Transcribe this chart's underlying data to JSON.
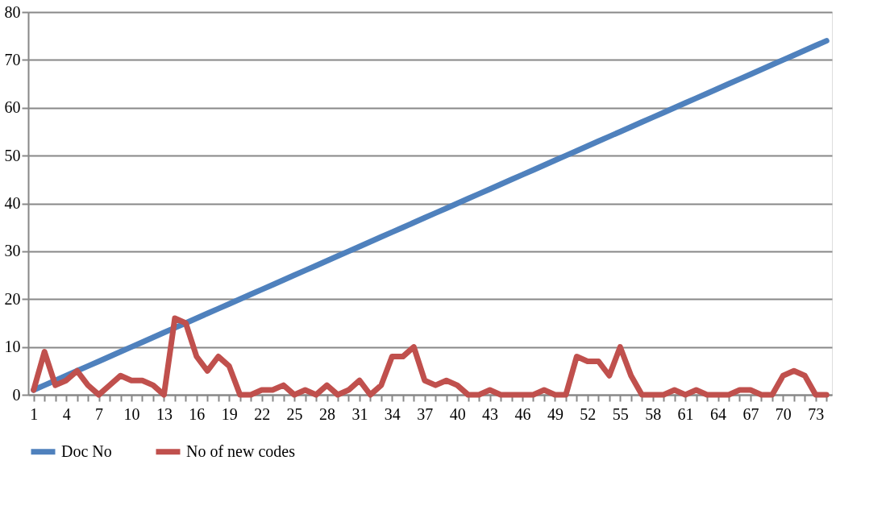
{
  "chart_data": {
    "type": "line",
    "categories": [
      "1",
      null,
      null,
      "4",
      null,
      null,
      "7",
      null,
      null,
      "10",
      null,
      null,
      "13",
      null,
      null,
      "16",
      null,
      null,
      "19",
      null,
      null,
      "22",
      null,
      null,
      "25",
      null,
      null,
      "28",
      null,
      null,
      "31",
      null,
      null,
      "34",
      null,
      null,
      "37",
      null,
      null,
      "40",
      null,
      null,
      "43",
      null,
      null,
      "46",
      null,
      null,
      "49",
      null,
      null,
      "52",
      null,
      null,
      "55",
      null,
      null,
      "58",
      null,
      null,
      "61",
      null,
      null,
      "64",
      null,
      null,
      "67",
      null,
      null,
      "70",
      null,
      null,
      "73",
      null
    ],
    "series": [
      {
        "name": "Doc No",
        "color": "#4f81bd",
        "values": [
          1,
          2,
          3,
          4,
          5,
          6,
          7,
          8,
          9,
          10,
          11,
          12,
          13,
          14,
          15,
          16,
          17,
          18,
          19,
          20,
          21,
          22,
          23,
          24,
          25,
          26,
          27,
          28,
          29,
          30,
          31,
          32,
          33,
          34,
          35,
          36,
          37,
          38,
          39,
          40,
          41,
          42,
          43,
          44,
          45,
          46,
          47,
          48,
          49,
          50,
          51,
          52,
          53,
          54,
          55,
          56,
          57,
          58,
          59,
          60,
          61,
          62,
          63,
          64,
          65,
          66,
          67,
          68,
          69,
          70,
          71,
          72,
          73,
          74
        ]
      },
      {
        "name": "No of new codes",
        "color": "#c0504d",
        "values": [
          1,
          9,
          2,
          3,
          5,
          2,
          0,
          2,
          4,
          3,
          3,
          2,
          0,
          16,
          15,
          8,
          5,
          8,
          6,
          0,
          0,
          1,
          1,
          2,
          0,
          1,
          0,
          2,
          0,
          1,
          3,
          0,
          2,
          8,
          8,
          10,
          3,
          2,
          3,
          2,
          0,
          0,
          1,
          0,
          0,
          0,
          0,
          1,
          0,
          0,
          8,
          7,
          7,
          4,
          10,
          4,
          0,
          0,
          0,
          1,
          0,
          1,
          0,
          0,
          0,
          1,
          1,
          0,
          0,
          4,
          5,
          4,
          0,
          0
        ]
      }
    ],
    "ylim": [
      0,
      80
    ],
    "yticks": [
      0,
      10,
      20,
      30,
      40,
      50,
      60,
      70,
      80
    ],
    "grid": "y",
    "legend": "bottom",
    "line_style": "solid",
    "marker": "none"
  }
}
